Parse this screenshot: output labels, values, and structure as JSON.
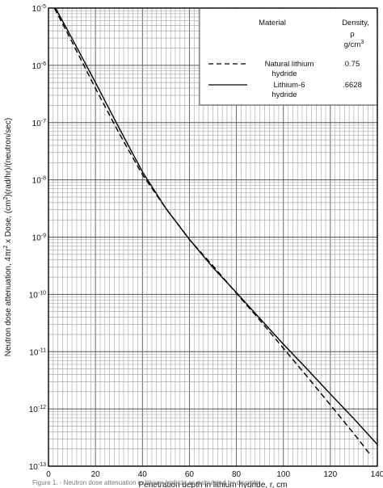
{
  "chart_data": {
    "type": "line",
    "title": "",
    "xlabel": "Penetration depth in lithium hydride,  r,  cm",
    "ylabel_parts": [
      "Neutron dose attenuation, 4πr",
      "2",
      " x Dose, (cm",
      "2",
      ")(rad/hr)/(neutron/sec)"
    ],
    "scale": {
      "x": "linear",
      "y": "log"
    },
    "xlim": [
      0,
      140
    ],
    "ylim_exponents": [
      -13,
      -5
    ],
    "y_tick_base": "10",
    "x_ticks": [
      "0",
      "20",
      "40",
      "60",
      "80",
      "100",
      "120",
      "140"
    ],
    "y_ticks": [
      "-5",
      "-6",
      "-7",
      "-8",
      "-9",
      "-10",
      "-11",
      "-12",
      "-13"
    ],
    "grid": true,
    "legend": {
      "location": "top-right",
      "header_material": "Material",
      "header_density": [
        "Density,",
        "ρ",
        "g/cm",
        "3"
      ],
      "entries": [
        {
          "label_lines": [
            "Natural lithium",
            "hydride"
          ],
          "density": "0.75",
          "style": "dashed"
        },
        {
          "label_lines": [
            "Lithium-6",
            "hydride"
          ],
          "density": ".6628",
          "style": "solid"
        }
      ]
    },
    "series": [
      {
        "style": "dashed",
        "x": [
          2.5,
          10,
          20,
          30,
          40,
          50,
          60,
          70,
          80,
          90,
          100,
          110,
          120,
          130,
          137
        ],
        "log10_y": [
          -5,
          -5.59,
          -6.4,
          -7.18,
          -7.91,
          -8.5,
          -9.04,
          -9.5,
          -9.98,
          -10.45,
          -10.94,
          -11.43,
          -11.93,
          -12.43,
          -12.8
        ]
      },
      {
        "style": "solid",
        "x": [
          3,
          10,
          20,
          30,
          40,
          50,
          60,
          70,
          80,
          90,
          100,
          110,
          120,
          130,
          140
        ],
        "log10_y": [
          -5,
          -5.53,
          -6.3,
          -7.09,
          -7.86,
          -8.5,
          -9.04,
          -9.53,
          -9.97,
          -10.42,
          -10.87,
          -11.3,
          -11.74,
          -12.17,
          -12.62
        ]
      }
    ]
  },
  "caption": "Figure 1. - Neutron dose attenuation in lithium hydride as calculated by discrete"
}
